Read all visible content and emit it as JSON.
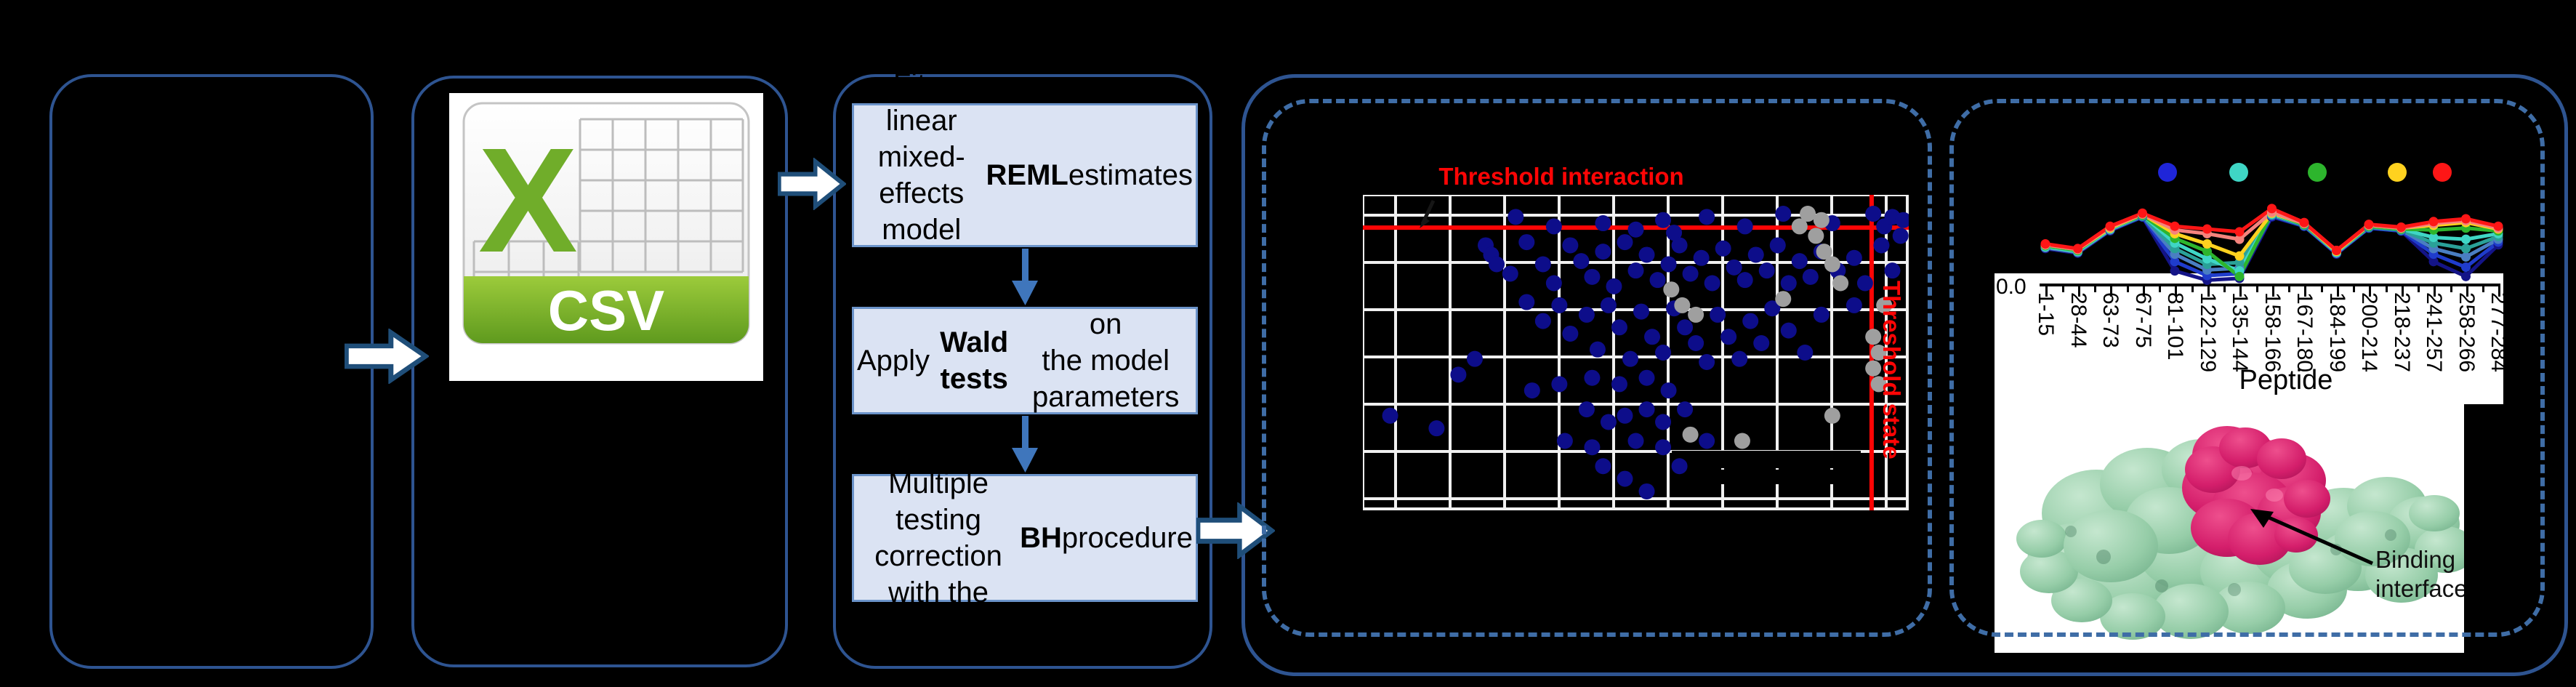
{
  "figure": {
    "background": "#000000",
    "accent_border": "#2e5491",
    "dashed_border": "#3f6da6"
  },
  "csv_icon": {
    "x_mark": "X",
    "label": "CSV",
    "green": "#70ad2a",
    "band_green": "#69a322"
  },
  "pipeline": {
    "boxes": [
      {
        "name": "fit-lmm",
        "segments": [
          {
            "t": "Fit a linear mixed-\neffects model with\n"
          },
          {
            "t": "REML",
            "b": true
          },
          {
            "t": " estimates"
          }
        ]
      },
      {
        "name": "wald-tests",
        "segments": [
          {
            "t": "Apply "
          },
          {
            "t": "Wald tests",
            "b": true
          },
          {
            "t": " on\nthe model parameters"
          }
        ]
      },
      {
        "name": "bh-correction",
        "segments": [
          {
            "t": "Multiple testing\ncorrection\nwith the "
          },
          {
            "t": "BH",
            "b": true
          },
          {
            "t": " procedure"
          }
        ]
      }
    ]
  },
  "labels": {
    "threshold_interaction": "Threshold interaction",
    "threshold_state": "Threshold state",
    "y_zero": "0.0",
    "x_axis_title": "Peptide",
    "binding_interface": "Binding\ninterface"
  },
  "chart_data": [
    {
      "type": "scatter",
      "title": "Threshold interaction",
      "right_label": "Threshold state",
      "grid": {
        "x_lines": [
          0,
          45,
          120,
          195,
          270,
          345,
          420,
          495,
          570,
          645,
          720,
          749
        ],
        "y_lines": [
          0,
          28,
          93,
          158,
          223,
          288,
          353,
          418,
          432
        ]
      },
      "thresholds": {
        "horizontal_y": 0.104,
        "vertical_x": 0.932,
        "color": "#fe0505"
      },
      "series": [
        {
          "name": "significant-blue",
          "color": "#0d0d8a",
          "points": [
            [
              0.28,
              0.07
            ],
            [
              0.35,
              0.1
            ],
            [
              0.44,
              0.09
            ],
            [
              0.5,
              0.11
            ],
            [
              0.55,
              0.08
            ],
            [
              0.57,
              0.12
            ],
            [
              0.63,
              0.07
            ],
            [
              0.7,
              0.1
            ],
            [
              0.77,
              0.06
            ],
            [
              0.86,
              0.09
            ],
            [
              0.935,
              0.06
            ],
            [
              0.955,
              0.1
            ],
            [
              0.97,
              0.07
            ],
            [
              0.225,
              0.16
            ],
            [
              0.235,
              0.19
            ],
            [
              0.245,
              0.22
            ],
            [
              0.27,
              0.25
            ],
            [
              0.3,
              0.15
            ],
            [
              0.33,
              0.22
            ],
            [
              0.35,
              0.28
            ],
            [
              0.38,
              0.16
            ],
            [
              0.4,
              0.21
            ],
            [
              0.42,
              0.26
            ],
            [
              0.44,
              0.18
            ],
            [
              0.46,
              0.29
            ],
            [
              0.48,
              0.15
            ],
            [
              0.5,
              0.24
            ],
            [
              0.52,
              0.19
            ],
            [
              0.54,
              0.27
            ],
            [
              0.56,
              0.22
            ],
            [
              0.58,
              0.16
            ],
            [
              0.6,
              0.25
            ],
            [
              0.62,
              0.2
            ],
            [
              0.64,
              0.28
            ],
            [
              0.66,
              0.17
            ],
            [
              0.68,
              0.23
            ],
            [
              0.7,
              0.27
            ],
            [
              0.72,
              0.19
            ],
            [
              0.74,
              0.24
            ],
            [
              0.76,
              0.16
            ],
            [
              0.78,
              0.28
            ],
            [
              0.8,
              0.21
            ],
            [
              0.82,
              0.26
            ],
            [
              0.84,
              0.18
            ],
            [
              0.87,
              0.24
            ],
            [
              0.9,
              0.2
            ],
            [
              0.92,
              0.28
            ],
            [
              0.95,
              0.16
            ],
            [
              0.97,
              0.24
            ],
            [
              0.3,
              0.34
            ],
            [
              0.33,
              0.4
            ],
            [
              0.36,
              0.35
            ],
            [
              0.38,
              0.44
            ],
            [
              0.41,
              0.38
            ],
            [
              0.43,
              0.49
            ],
            [
              0.45,
              0.35
            ],
            [
              0.47,
              0.42
            ],
            [
              0.49,
              0.52
            ],
            [
              0.51,
              0.37
            ],
            [
              0.53,
              0.45
            ],
            [
              0.55,
              0.5
            ],
            [
              0.57,
              0.36
            ],
            [
              0.59,
              0.42
            ],
            [
              0.61,
              0.47
            ],
            [
              0.63,
              0.53
            ],
            [
              0.65,
              0.38
            ],
            [
              0.67,
              0.45
            ],
            [
              0.69,
              0.52
            ],
            [
              0.71,
              0.4
            ],
            [
              0.73,
              0.47
            ],
            [
              0.75,
              0.36
            ],
            [
              0.78,
              0.43
            ],
            [
              0.81,
              0.5
            ],
            [
              0.84,
              0.38
            ],
            [
              0.9,
              0.35
            ],
            [
              0.05,
              0.7
            ],
            [
              0.135,
              0.74
            ],
            [
              0.175,
              0.57
            ],
            [
              0.205,
              0.52
            ],
            [
              0.31,
              0.62
            ],
            [
              0.36,
              0.6
            ],
            [
              0.42,
              0.58
            ],
            [
              0.47,
              0.6
            ],
            [
              0.52,
              0.58
            ],
            [
              0.56,
              0.62
            ],
            [
              0.41,
              0.68
            ],
            [
              0.45,
              0.72
            ],
            [
              0.48,
              0.7
            ],
            [
              0.52,
              0.68
            ],
            [
              0.55,
              0.72
            ],
            [
              0.59,
              0.68
            ],
            [
              0.37,
              0.78
            ],
            [
              0.42,
              0.8
            ],
            [
              0.5,
              0.78
            ],
            [
              0.55,
              0.8
            ],
            [
              0.44,
              0.86
            ],
            [
              0.48,
              0.9
            ],
            [
              0.52,
              0.94
            ],
            [
              0.58,
              0.86
            ],
            [
              0.63,
              0.78
            ],
            [
              0.99,
              0.08
            ],
            [
              0.985,
              0.13
            ]
          ]
        },
        {
          "name": "non-significant-gray",
          "color": "#9f9f9f",
          "points": [
            [
              0.565,
              0.3
            ],
            [
              0.585,
              0.35
            ],
            [
              0.61,
              0.38
            ],
            [
              0.77,
              0.33
            ],
            [
              0.8,
              0.1
            ],
            [
              0.815,
              0.06
            ],
            [
              0.83,
              0.13
            ],
            [
              0.845,
              0.18
            ],
            [
              0.86,
              0.22
            ],
            [
              0.875,
              0.28
            ],
            [
              0.84,
              0.08
            ],
            [
              0.935,
              0.45
            ],
            [
              0.945,
              0.5
            ],
            [
              0.935,
              0.55
            ],
            [
              0.945,
              0.6
            ],
            [
              0.6,
              0.76
            ],
            [
              0.695,
              0.78
            ],
            [
              0.86,
              0.7
            ],
            [
              0.955,
              0.35
            ]
          ]
        }
      ]
    },
    {
      "type": "line",
      "x_categories": [
        "1-15",
        "28-44",
        "63-73",
        "67-75",
        "81-101",
        "122-129",
        "135-144",
        "158-166",
        "167-180",
        "184-199",
        "200-214",
        "218-237",
        "241-257",
        "258-266",
        "277-284"
      ],
      "xlabel": "Peptide",
      "y_tick_labels": [
        "0.0"
      ],
      "ylim": [
        0,
        1
      ],
      "legend": {
        "position": "top",
        "labels_visible": false,
        "marker_colors": [
          "#1f25d8",
          "#3fd6c5",
          "#2db52d",
          "#ffd21f",
          "#fe1616"
        ]
      },
      "series": [
        {
          "name": "navy",
          "color": "#141487",
          "values": [
            0.36,
            0.31,
            0.55,
            0.7,
            0.12,
            0.02,
            0.04,
            0.7,
            0.6,
            0.3,
            0.58,
            0.55,
            0.22,
            0.06,
            0.4
          ]
        },
        {
          "name": "blue",
          "color": "#1f3ccc",
          "values": [
            0.37,
            0.32,
            0.56,
            0.7,
            0.22,
            0.07,
            0.09,
            0.71,
            0.6,
            0.31,
            0.58,
            0.55,
            0.3,
            0.16,
            0.43
          ]
        },
        {
          "name": "steelblue",
          "color": "#4a7ec2",
          "values": [
            0.37,
            0.32,
            0.56,
            0.71,
            0.3,
            0.13,
            0.15,
            0.72,
            0.61,
            0.31,
            0.59,
            0.56,
            0.36,
            0.27,
            0.46
          ]
        },
        {
          "name": "teal",
          "color": "#2aa198",
          "values": [
            0.38,
            0.33,
            0.57,
            0.71,
            0.36,
            0.19,
            0.21,
            0.72,
            0.61,
            0.32,
            0.59,
            0.56,
            0.42,
            0.36,
            0.49
          ]
        },
        {
          "name": "turquoise",
          "color": "#3fd6c5",
          "values": [
            0.38,
            0.33,
            0.57,
            0.72,
            0.42,
            0.25,
            0.12,
            0.73,
            0.62,
            0.32,
            0.6,
            0.57,
            0.48,
            0.46,
            0.52
          ]
        },
        {
          "name": "green",
          "color": "#2db52d",
          "values": [
            0.39,
            0.34,
            0.58,
            0.72,
            0.47,
            0.33,
            0.06,
            0.74,
            0.62,
            0.33,
            0.6,
            0.57,
            0.56,
            0.58,
            0.55
          ]
        },
        {
          "name": "gold",
          "color": "#ffd21f",
          "values": [
            0.4,
            0.35,
            0.58,
            0.73,
            0.52,
            0.41,
            0.28,
            0.74,
            0.63,
            0.33,
            0.61,
            0.58,
            0.61,
            0.64,
            0.57
          ]
        },
        {
          "name": "salmon",
          "color": "#f4837d",
          "values": [
            0.4,
            0.35,
            0.59,
            0.73,
            0.56,
            0.52,
            0.46,
            0.75,
            0.63,
            0.34,
            0.61,
            0.58,
            0.63,
            0.66,
            0.58
          ]
        },
        {
          "name": "red",
          "color": "#fe1616",
          "values": [
            0.41,
            0.36,
            0.6,
            0.74,
            0.6,
            0.57,
            0.54,
            0.79,
            0.64,
            0.34,
            0.62,
            0.59,
            0.65,
            0.68,
            0.6
          ]
        }
      ]
    }
  ]
}
